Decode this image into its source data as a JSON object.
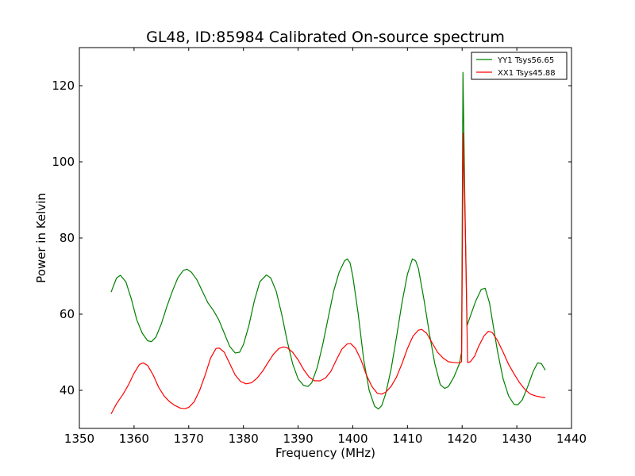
{
  "chart_data": {
    "type": "line",
    "title": "GL48, ID:85984 Calibrated On-source spectrum",
    "xlabel": "Frequency (MHz)",
    "ylabel": "Power in Kelvin",
    "xlim": [
      1350,
      1440
    ],
    "ylim": [
      30,
      130
    ],
    "xticks": [
      "1350",
      "1360",
      "1370",
      "1380",
      "1390",
      "1400",
      "1410",
      "1420",
      "1430",
      "1440"
    ],
    "yticks": [
      "40",
      "60",
      "80",
      "100",
      "120"
    ],
    "xtick_values": [
      1350,
      1360,
      1370,
      1380,
      1390,
      1400,
      1410,
      1420,
      1430,
      1440
    ],
    "ytick_values": [
      40,
      60,
      80,
      100,
      120
    ],
    "grid": false,
    "legend_position": "top-right",
    "series": [
      {
        "name": "YY1 Tsys56.65",
        "color": "#008000",
        "points": [
          [
            1355.8,
            65.8
          ],
          [
            1356.8,
            69.5
          ],
          [
            1357.5,
            70.2
          ],
          [
            1358.5,
            68.5
          ],
          [
            1359.5,
            64.0
          ],
          [
            1360.5,
            58.5
          ],
          [
            1361.5,
            55.0
          ],
          [
            1362.5,
            53.0
          ],
          [
            1363.2,
            52.8
          ],
          [
            1364.0,
            54.0
          ],
          [
            1365.0,
            57.5
          ],
          [
            1366.0,
            62.0
          ],
          [
            1367.0,
            66.0
          ],
          [
            1368.0,
            69.5
          ],
          [
            1369.0,
            71.5
          ],
          [
            1369.7,
            71.8
          ],
          [
            1370.5,
            71.0
          ],
          [
            1371.5,
            69.0
          ],
          [
            1372.5,
            66.0
          ],
          [
            1373.5,
            63.0
          ],
          [
            1374.5,
            61.0
          ],
          [
            1375.5,
            58.5
          ],
          [
            1376.5,
            55.0
          ],
          [
            1377.5,
            51.5
          ],
          [
            1378.5,
            49.8
          ],
          [
            1379.3,
            50.0
          ],
          [
            1380.0,
            52.0
          ],
          [
            1381.0,
            57.0
          ],
          [
            1382.0,
            63.5
          ],
          [
            1383.0,
            68.5
          ],
          [
            1384.2,
            70.3
          ],
          [
            1385.0,
            69.5
          ],
          [
            1386.0,
            66.0
          ],
          [
            1387.0,
            60.0
          ],
          [
            1388.0,
            53.0
          ],
          [
            1389.0,
            47.0
          ],
          [
            1390.0,
            43.0
          ],
          [
            1391.0,
            41.3
          ],
          [
            1391.8,
            41.0
          ],
          [
            1392.5,
            42.0
          ],
          [
            1393.5,
            46.0
          ],
          [
            1394.5,
            52.0
          ],
          [
            1395.5,
            59.0
          ],
          [
            1396.5,
            66.0
          ],
          [
            1397.5,
            71.0
          ],
          [
            1398.5,
            74.0
          ],
          [
            1399.0,
            74.5
          ],
          [
            1399.5,
            73.5
          ],
          [
            1400.0,
            70.0
          ],
          [
            1401.0,
            60.0
          ],
          [
            1402.0,
            48.0
          ],
          [
            1403.0,
            40.0
          ],
          [
            1404.0,
            35.8
          ],
          [
            1404.7,
            35.1
          ],
          [
            1405.3,
            36.0
          ],
          [
            1406.0,
            39.0
          ],
          [
            1407.0,
            45.5
          ],
          [
            1408.0,
            54.0
          ],
          [
            1409.0,
            63.0
          ],
          [
            1410.0,
            70.5
          ],
          [
            1410.9,
            74.5
          ],
          [
            1411.5,
            74.0
          ],
          [
            1412.0,
            72.0
          ],
          [
            1413.0,
            64.0
          ],
          [
            1414.0,
            55.0
          ],
          [
            1415.0,
            47.0
          ],
          [
            1416.0,
            41.5
          ],
          [
            1416.8,
            40.5
          ],
          [
            1417.5,
            41.0
          ],
          [
            1418.5,
            43.5
          ],
          [
            1419.5,
            47.0
          ],
          [
            1419.9,
            50.0
          ],
          [
            1420.15,
            123.5
          ],
          [
            1420.5,
            90.0
          ],
          [
            1420.9,
            57.0
          ],
          [
            1421.5,
            59.5
          ],
          [
            1422.5,
            63.5
          ],
          [
            1423.5,
            66.5
          ],
          [
            1424.2,
            66.8
          ],
          [
            1425.0,
            63.0
          ],
          [
            1425.8,
            56.0
          ],
          [
            1426.5,
            50.0
          ],
          [
            1427.5,
            43.0
          ],
          [
            1428.5,
            38.5
          ],
          [
            1429.5,
            36.3
          ],
          [
            1430.2,
            36.2
          ],
          [
            1431.0,
            37.5
          ],
          [
            1432.0,
            41.0
          ],
          [
            1433.0,
            45.0
          ],
          [
            1433.8,
            47.2
          ],
          [
            1434.5,
            47.0
          ],
          [
            1435.2,
            45.3
          ]
        ]
      },
      {
        "name": "XX1 Tsys45.88",
        "color": "#ff0000",
        "points": [
          [
            1355.8,
            33.8
          ],
          [
            1356.8,
            36.5
          ],
          [
            1358.0,
            39.0
          ],
          [
            1359.0,
            41.5
          ],
          [
            1360.0,
            44.5
          ],
          [
            1361.0,
            46.8
          ],
          [
            1361.7,
            47.2
          ],
          [
            1362.5,
            46.5
          ],
          [
            1363.5,
            44.0
          ],
          [
            1364.5,
            40.8
          ],
          [
            1365.5,
            38.5
          ],
          [
            1366.5,
            37.0
          ],
          [
            1367.5,
            36.0
          ],
          [
            1368.5,
            35.3
          ],
          [
            1369.3,
            35.2
          ],
          [
            1370.0,
            35.5
          ],
          [
            1371.0,
            37.0
          ],
          [
            1372.0,
            40.0
          ],
          [
            1373.0,
            44.0
          ],
          [
            1374.0,
            48.5
          ],
          [
            1375.0,
            51.0
          ],
          [
            1375.6,
            51.1
          ],
          [
            1376.5,
            50.0
          ],
          [
            1377.5,
            47.0
          ],
          [
            1378.5,
            44.0
          ],
          [
            1379.5,
            42.3
          ],
          [
            1380.5,
            41.7
          ],
          [
            1381.5,
            42.0
          ],
          [
            1382.5,
            43.2
          ],
          [
            1383.5,
            45.0
          ],
          [
            1384.5,
            47.3
          ],
          [
            1385.5,
            49.5
          ],
          [
            1386.5,
            51.0
          ],
          [
            1387.3,
            51.4
          ],
          [
            1388.0,
            51.2
          ],
          [
            1389.0,
            50.0
          ],
          [
            1390.0,
            48.0
          ],
          [
            1391.0,
            45.5
          ],
          [
            1392.0,
            43.5
          ],
          [
            1393.0,
            42.5
          ],
          [
            1394.0,
            42.5
          ],
          [
            1395.0,
            43.2
          ],
          [
            1396.0,
            45.0
          ],
          [
            1397.0,
            48.0
          ],
          [
            1398.0,
            50.8
          ],
          [
            1399.0,
            52.2
          ],
          [
            1399.6,
            52.3
          ],
          [
            1400.5,
            51.0
          ],
          [
            1401.5,
            48.0
          ],
          [
            1402.5,
            44.0
          ],
          [
            1403.5,
            41.0
          ],
          [
            1404.5,
            39.2
          ],
          [
            1405.3,
            39.0
          ],
          [
            1406.0,
            39.5
          ],
          [
            1407.0,
            41.0
          ],
          [
            1408.0,
            43.5
          ],
          [
            1409.0,
            47.0
          ],
          [
            1410.0,
            51.0
          ],
          [
            1411.0,
            54.2
          ],
          [
            1412.0,
            55.8
          ],
          [
            1412.6,
            56.0
          ],
          [
            1413.5,
            55.0
          ],
          [
            1414.5,
            52.5
          ],
          [
            1415.5,
            50.0
          ],
          [
            1416.5,
            48.5
          ],
          [
            1417.5,
            47.5
          ],
          [
            1418.5,
            47.3
          ],
          [
            1419.5,
            47.2
          ],
          [
            1419.9,
            47.5
          ],
          [
            1420.2,
            107.5
          ],
          [
            1420.6,
            80.0
          ],
          [
            1421.0,
            47.3
          ],
          [
            1421.5,
            47.5
          ],
          [
            1422.3,
            49.0
          ],
          [
            1423.0,
            51.5
          ],
          [
            1424.0,
            54.3
          ],
          [
            1424.8,
            55.5
          ],
          [
            1425.5,
            55.2
          ],
          [
            1426.5,
            53.0
          ],
          [
            1427.5,
            50.0
          ],
          [
            1428.5,
            46.8
          ],
          [
            1429.5,
            44.3
          ],
          [
            1430.5,
            42.0
          ],
          [
            1431.5,
            40.2
          ],
          [
            1432.5,
            39.0
          ],
          [
            1433.5,
            38.5
          ],
          [
            1434.5,
            38.2
          ],
          [
            1435.2,
            38.1
          ]
        ]
      }
    ]
  }
}
